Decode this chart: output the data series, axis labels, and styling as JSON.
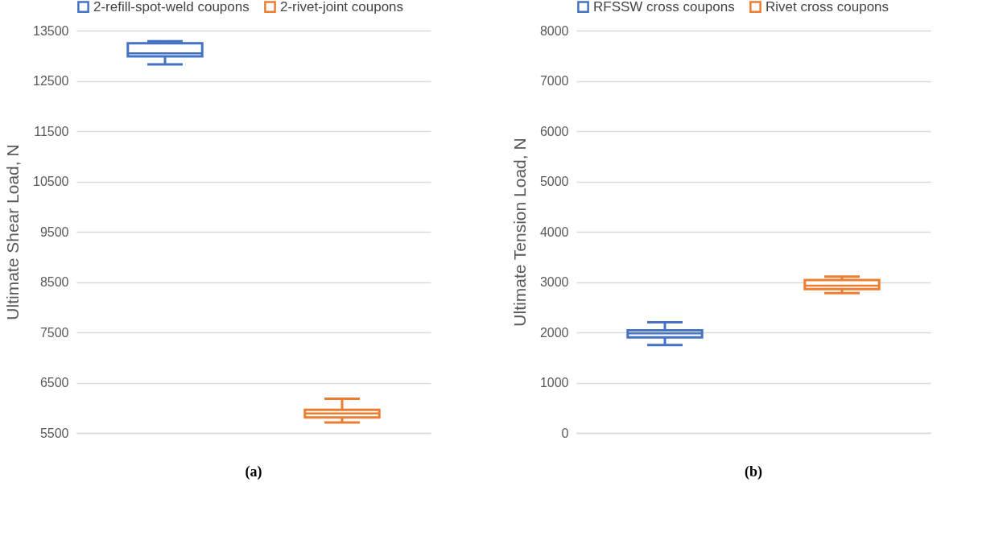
{
  "chart_data": [
    {
      "type": "box",
      "ylabel": "Ultimate Shear Load, N",
      "categories": [
        null
      ],
      "ylim": [
        5500,
        13500
      ],
      "yticks": [
        5500,
        6500,
        7500,
        8500,
        9500,
        10500,
        11500,
        12500,
        13500
      ],
      "grid": "y",
      "legend": "top",
      "tick_labels": "y",
      "annotations": [
        "(a)"
      ],
      "series": [
        {
          "name": "2-refill-spot-weld coupons",
          "color": "#4472c4",
          "boxes": [
            {
              "low": 12830,
              "q1": 12990,
              "median": 13050,
              "q3": 13250,
              "high": 13290
            }
          ]
        },
        {
          "name": "2-rivet-joint coupons",
          "color": "#ed7d31",
          "boxes": [
            {
              "low": 5710,
              "q1": 5810,
              "median": 5890,
              "q3": 5960,
              "high": 6180
            }
          ]
        }
      ]
    },
    {
      "type": "box",
      "ylabel": "Ultimate Tension Load, N",
      "categories": [
        null
      ],
      "ylim": [
        0,
        8000
      ],
      "yticks": [
        0,
        1000,
        2000,
        3000,
        4000,
        5000,
        6000,
        7000,
        8000
      ],
      "grid": "y",
      "legend": "top",
      "tick_labels": "y",
      "annotations": [
        "(b)"
      ],
      "series": [
        {
          "name": "RFSSW cross coupons",
          "color": "#4472c4",
          "boxes": [
            {
              "low": 1750,
              "q1": 1900,
              "median": 1980,
              "q3": 2040,
              "high": 2200
            }
          ]
        },
        {
          "name": "Rivet cross coupons",
          "color": "#ed7d31",
          "boxes": [
            {
              "low": 2780,
              "q1": 2860,
              "median": 2930,
              "q3": 3040,
              "high": 3110
            }
          ]
        }
      ]
    }
  ]
}
